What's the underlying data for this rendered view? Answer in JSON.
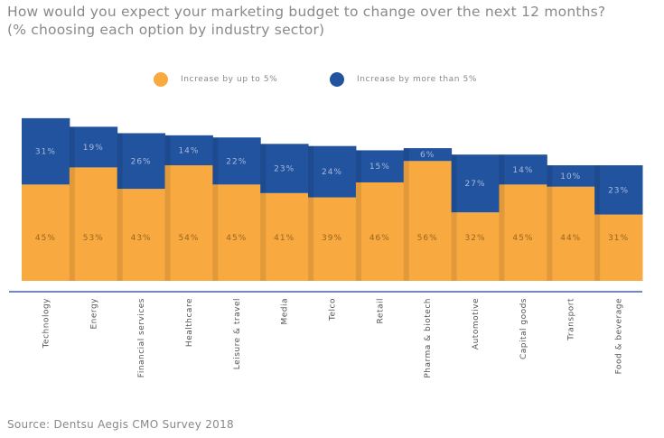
{
  "title_line1": "How would you expect your marketing budget to change over the next 12 months?",
  "title_line2": "(% choosing each option by industry sector)",
  "source": "Source: Dentsu Aegis CMO Survey 2018",
  "chart_data": {
    "type": "bar",
    "stacked": true,
    "categories": [
      "Technology",
      "Energy",
      "Financial services",
      "Healthcare",
      "Leisure & travel",
      "Media",
      "Telco",
      "Retail",
      "Pharma & biotech",
      "Automotive",
      "Capital goods",
      "Transport",
      "Food & beverage"
    ],
    "series": [
      {
        "name": "Increase by up to 5%",
        "color": "#F8A940",
        "values": [
          45,
          53,
          43,
          54,
          45,
          41,
          39,
          46,
          56,
          32,
          45,
          44,
          31
        ]
      },
      {
        "name": "Increase by more than 5%",
        "color": "#22539E",
        "values": [
          31,
          19,
          26,
          14,
          22,
          23,
          24,
          15,
          6,
          27,
          14,
          10,
          23
        ]
      }
    ],
    "value_suffix": "%",
    "legend": "top",
    "grid": false
  }
}
